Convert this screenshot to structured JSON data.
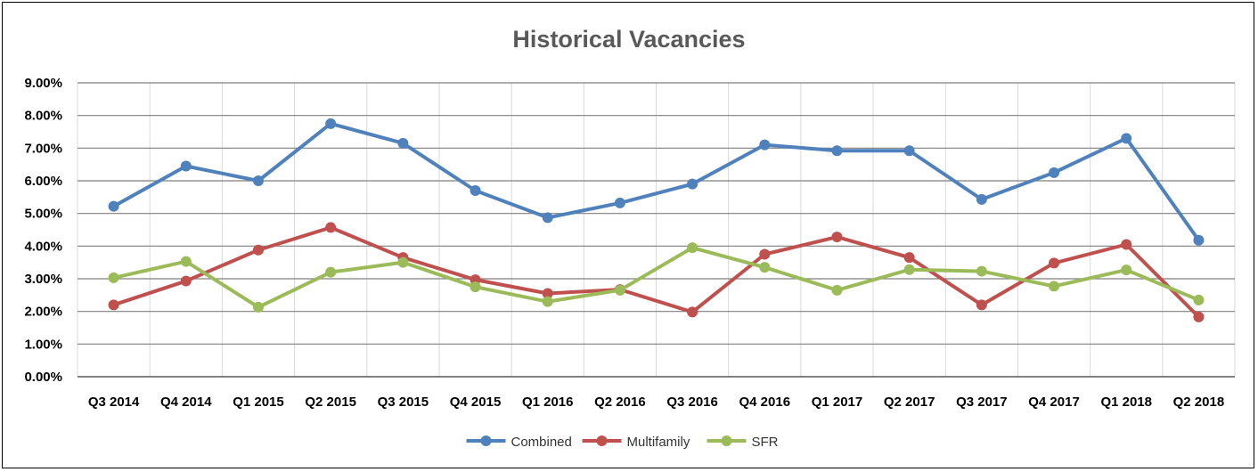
{
  "chart_data": {
    "type": "line",
    "title": "Historical Vacancies",
    "xlabel": "",
    "ylabel": "",
    "categories": [
      "Q3 2014",
      "Q4 2014",
      "Q1 2015",
      "Q2 2015",
      "Q3 2015",
      "Q4 2015",
      "Q1 2016",
      "Q2 2016",
      "Q3 2016",
      "Q4 2016",
      "Q1 2017",
      "Q2 2017",
      "Q3 2017",
      "Q4 2017",
      "Q1 2018",
      "Q2 2018"
    ],
    "ylim": [
      0,
      9
    ],
    "yticks": [
      "0.00%",
      "1.00%",
      "2.00%",
      "3.00%",
      "4.00%",
      "5.00%",
      "6.00%",
      "7.00%",
      "8.00%",
      "9.00%"
    ],
    "grid": true,
    "legend_position": "bottom",
    "series": [
      {
        "name": "Combined",
        "color": "#4f81bd",
        "values": [
          5.22,
          6.45,
          6.0,
          7.75,
          7.15,
          5.7,
          4.87,
          5.32,
          5.9,
          7.1,
          6.92,
          6.92,
          5.43,
          6.25,
          7.3,
          4.18
        ]
      },
      {
        "name": "Multifamily",
        "color": "#c0504d",
        "values": [
          2.2,
          2.93,
          3.88,
          4.57,
          3.65,
          2.97,
          2.55,
          2.67,
          1.98,
          3.75,
          4.28,
          3.65,
          2.2,
          3.48,
          4.05,
          1.83
        ]
      },
      {
        "name": "SFR",
        "color": "#9bbb59",
        "values": [
          3.03,
          3.53,
          2.13,
          3.2,
          3.5,
          2.75,
          2.3,
          2.65,
          3.95,
          3.35,
          2.65,
          3.28,
          3.23,
          2.77,
          3.27,
          2.35
        ]
      }
    ]
  }
}
